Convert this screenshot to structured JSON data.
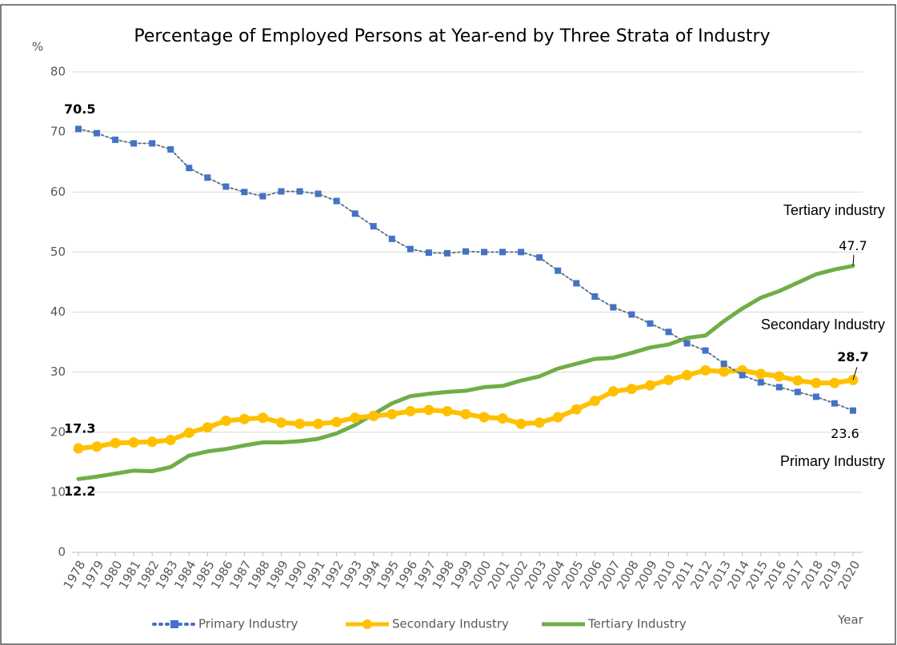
{
  "chart_data": {
    "type": "line",
    "title": "Percentage of Employed Persons at Year-end by Three Strata of Industry",
    "y_axis_label": "%",
    "x_axis_label": "Year",
    "categories": [
      "1978",
      "1979",
      "1980",
      "1981",
      "1982",
      "1983",
      "1984",
      "1985",
      "1986",
      "1987",
      "1988",
      "1989",
      "1990",
      "1991",
      "1992",
      "1993",
      "1994",
      "1995",
      "1996",
      "1997",
      "1998",
      "1999",
      "2000",
      "2001",
      "2002",
      "2003",
      "2004",
      "2005",
      "2006",
      "2007",
      "2008",
      "2009",
      "2010",
      "2011",
      "2012",
      "2013",
      "2014",
      "2015",
      "2016",
      "2017",
      "2018",
      "2019",
      "2020"
    ],
    "series": [
      {
        "name": "Primary Industry",
        "color": "#4472c4",
        "values": [
          70.5,
          69.8,
          68.7,
          68.1,
          68.1,
          67.1,
          64.0,
          62.4,
          60.9,
          60.0,
          59.3,
          60.1,
          60.1,
          59.7,
          58.5,
          56.4,
          54.3,
          52.2,
          50.5,
          49.9,
          49.8,
          50.1,
          50.0,
          50.0,
          50.0,
          49.1,
          46.9,
          44.8,
          42.6,
          40.8,
          39.6,
          38.1,
          36.7,
          34.8,
          33.6,
          31.4,
          29.5,
          28.3,
          27.5,
          26.7,
          25.9,
          24.8,
          23.6
        ]
      },
      {
        "name": "Secondary Industry",
        "color": "#ffc000",
        "values": [
          17.3,
          17.6,
          18.2,
          18.3,
          18.4,
          18.7,
          19.9,
          20.8,
          21.9,
          22.2,
          22.4,
          21.6,
          21.4,
          21.4,
          21.7,
          22.4,
          22.7,
          23.0,
          23.5,
          23.7,
          23.5,
          23.0,
          22.5,
          22.3,
          21.4,
          21.6,
          22.5,
          23.8,
          25.2,
          26.8,
          27.2,
          27.8,
          28.7,
          29.5,
          30.3,
          30.1,
          30.3,
          29.7,
          29.3,
          28.6,
          28.2,
          28.2,
          28.7
        ]
      },
      {
        "name": "Tertiary Industry",
        "color": "#70ad47",
        "values": [
          12.2,
          12.6,
          13.1,
          13.6,
          13.5,
          14.2,
          16.1,
          16.8,
          17.2,
          17.8,
          18.3,
          18.3,
          18.5,
          18.9,
          19.8,
          21.2,
          23.0,
          24.8,
          26.0,
          26.4,
          26.7,
          26.9,
          27.5,
          27.7,
          28.6,
          29.3,
          30.6,
          31.4,
          32.2,
          32.4,
          33.2,
          34.1,
          34.6,
          35.7,
          36.1,
          38.5,
          40.6,
          42.4,
          43.5,
          44.9,
          46.3,
          47.1,
          47.7
        ]
      }
    ],
    "annotations": [
      "Tertiary industry",
      "Secondary Industry",
      "Primary Industry"
    ],
    "ylim": [
      0,
      80
    ],
    "yticks": [
      0,
      10,
      20,
      30,
      40,
      50,
      60,
      70,
      80
    ],
    "grid": true,
    "legend": "bottom"
  }
}
